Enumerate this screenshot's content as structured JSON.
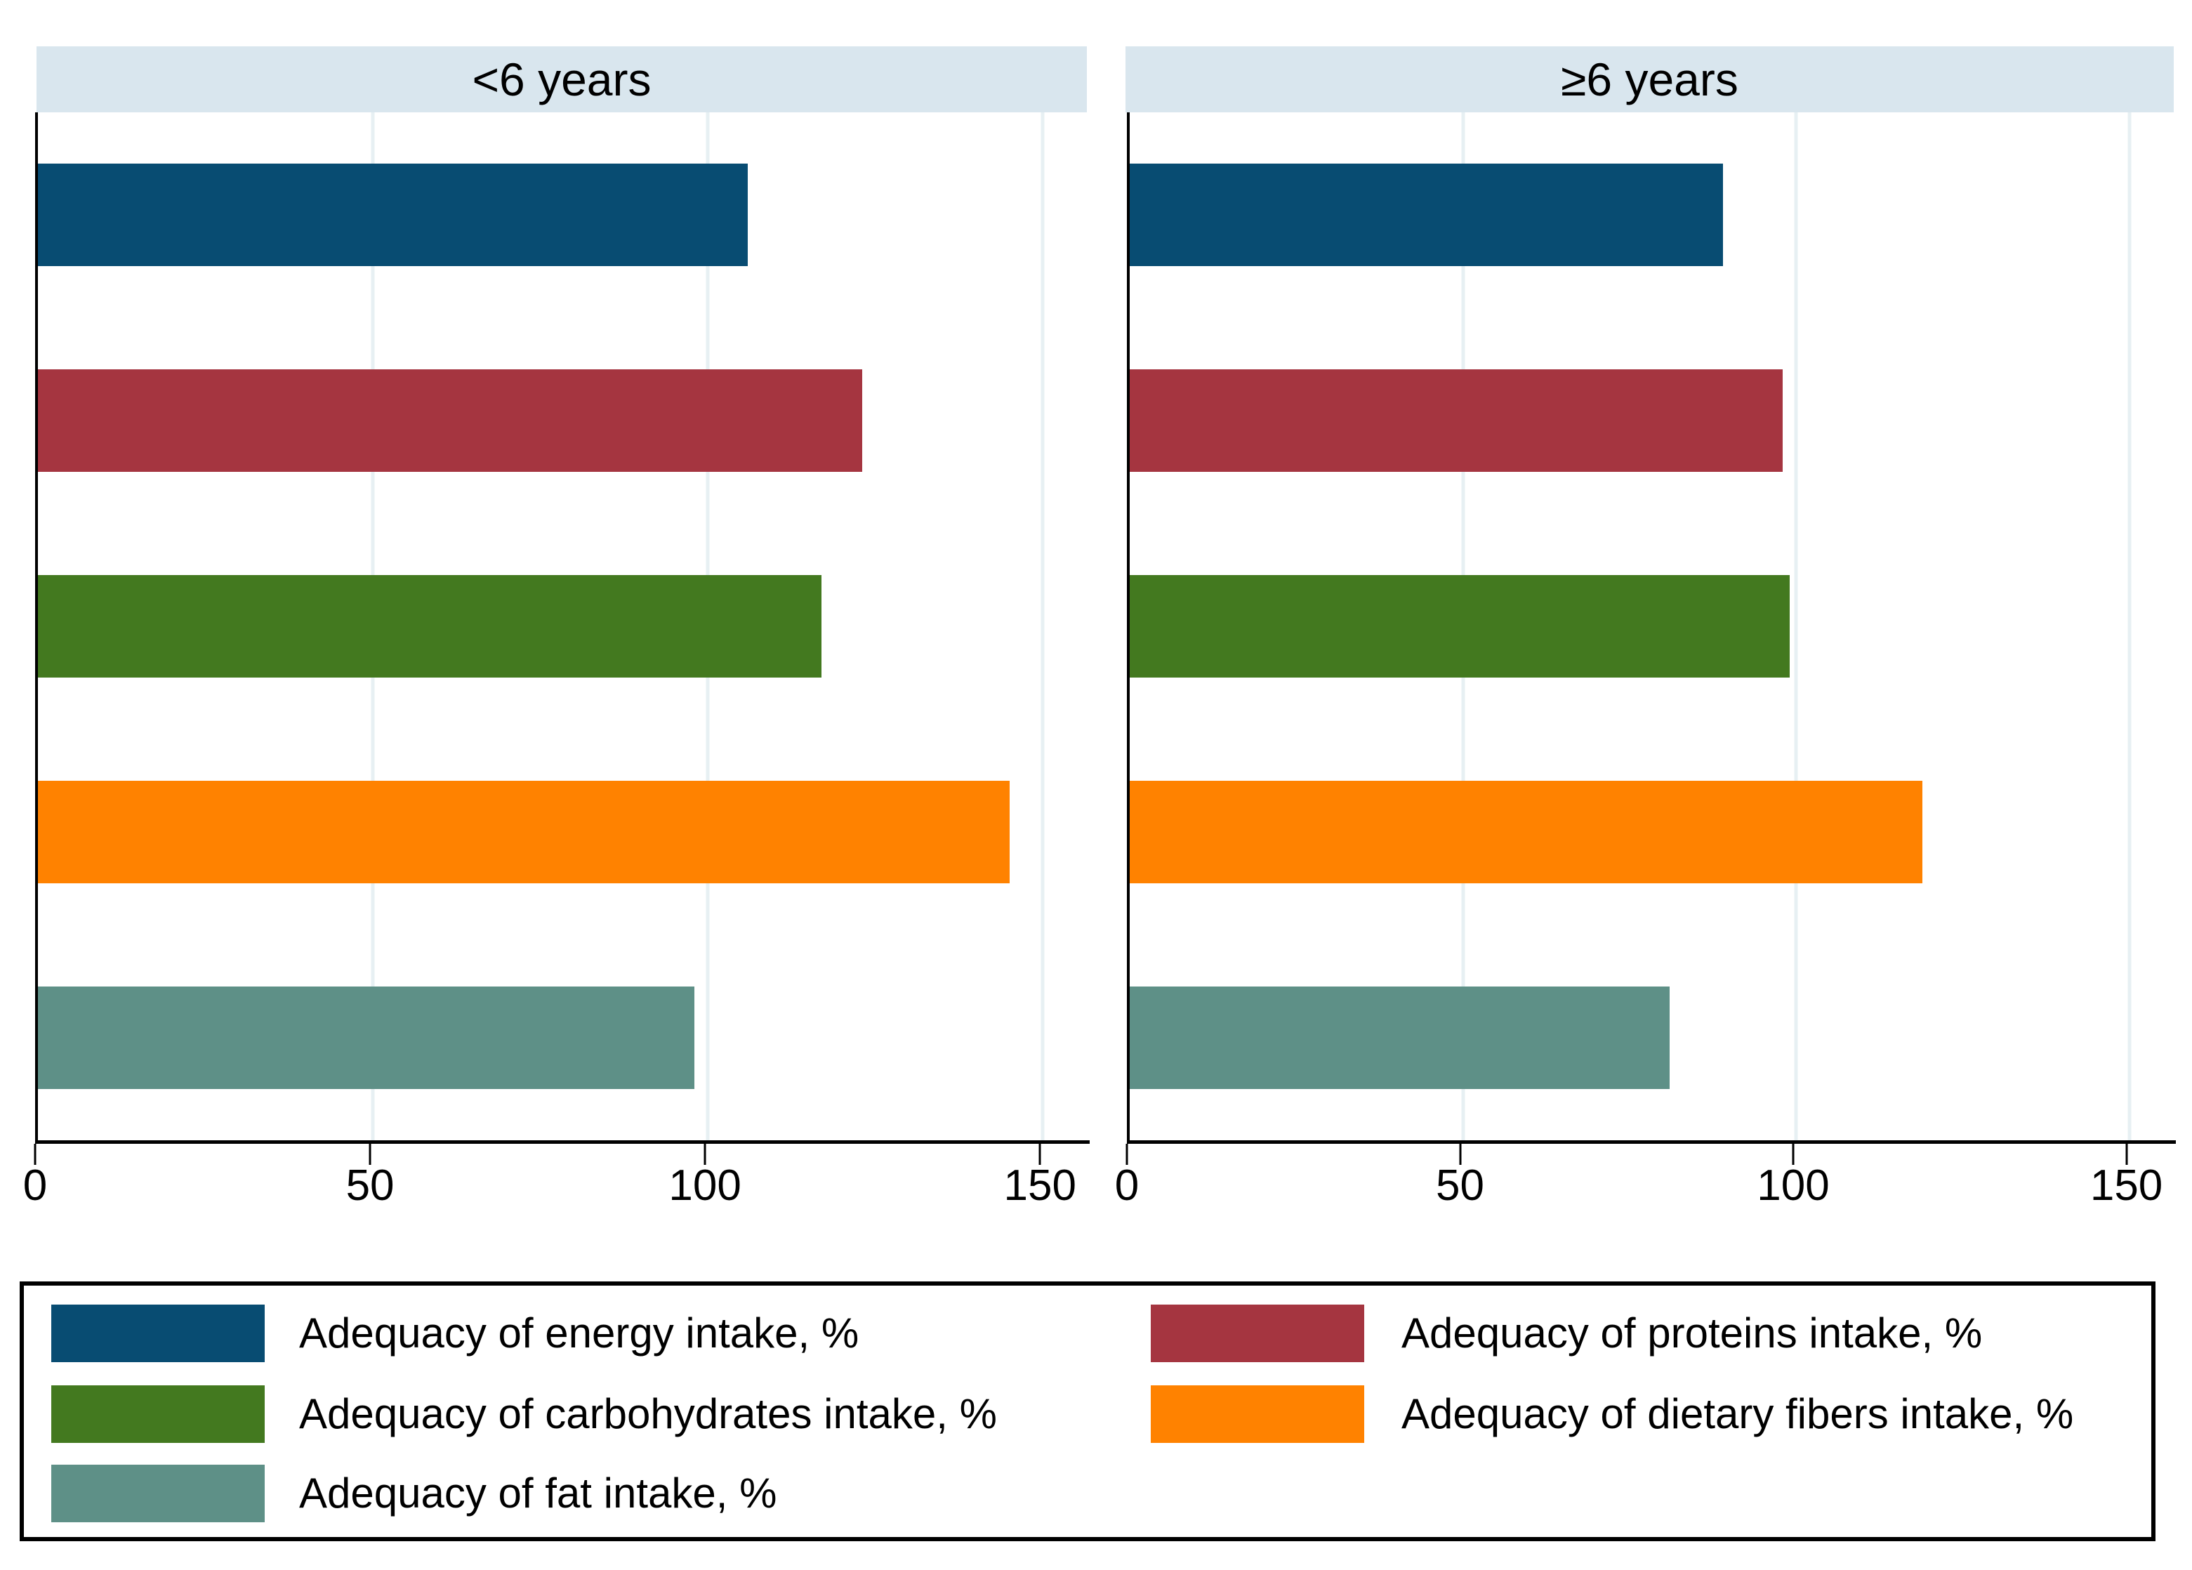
{
  "chart_data": {
    "type": "bar",
    "orientation": "horizontal",
    "panels": [
      {
        "title": "<6 years",
        "values": [
          106,
          123,
          117,
          145,
          98
        ]
      },
      {
        "title": "≥6 years",
        "values": [
          89,
          98,
          99,
          119,
          81
        ]
      }
    ],
    "series": [
      {
        "name": "Adequacy of energy intake, %",
        "color": "#084c72"
      },
      {
        "name": "Adequacy of proteins intake, %",
        "color": "#a53540"
      },
      {
        "name": "Adequacy of carbohydrates intake, %",
        "color": "#43791f"
      },
      {
        "name": "Adequacy of dietary fibers intake, %",
        "color": "#ff8200"
      },
      {
        "name": "Adequacy of fat intake, %",
        "color": "#5e9087"
      }
    ],
    "x_ticks": [
      0,
      50,
      100,
      150
    ],
    "xlim": [
      0,
      157
    ],
    "grid": true,
    "legend_position": "bottom",
    "legend_columns": [
      [
        0,
        2,
        4
      ],
      [
        1,
        3
      ]
    ]
  },
  "styles": {
    "header_band_color": "#d9e6ee",
    "gridline_color": "#e7f0f3",
    "axis_color": "#000000",
    "legend_border_color": "#000000",
    "background": "#ffffff"
  }
}
